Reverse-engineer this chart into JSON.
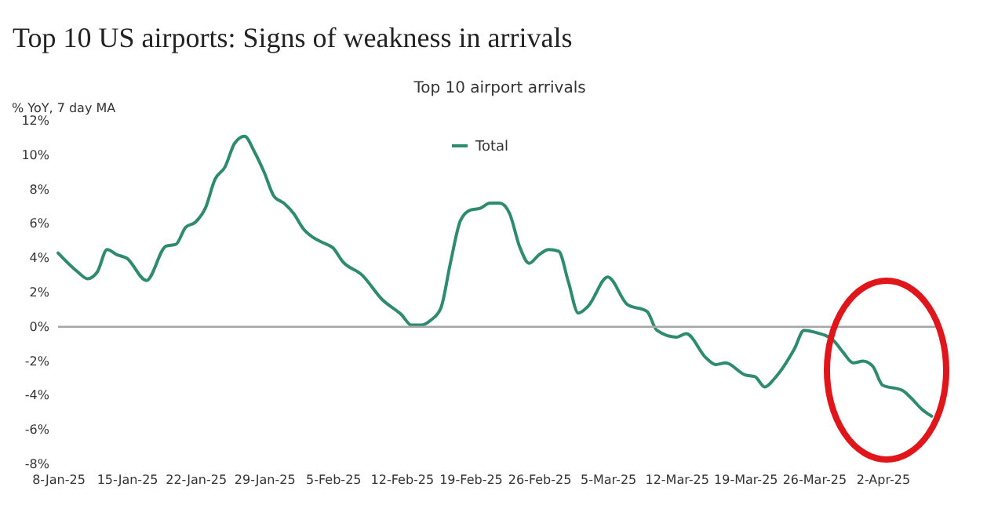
{
  "chart_data": {
    "type": "line",
    "title": "Top 10 US airports: Signs of weakness in arrivals",
    "subtitle": "Top 10 airport arrivals",
    "ylabel": "% YoY, 7 day MA",
    "x": [
      "--01-08",
      "--01-10",
      "--01-11",
      "--01-12",
      "--01-13",
      "--01-14",
      "--01-15",
      "--01-17",
      "--01-19",
      "--01-20",
      "--01-21",
      "--01-22",
      "--01-23",
      "--01-24",
      "--01-25",
      "--01-26",
      "--01-27",
      "--01-28",
      "--01-29",
      "--01-30",
      "--01-31",
      "--02-01",
      "--02-02",
      "--02-03",
      "--02-04",
      "--02-05",
      "--02-06",
      "--02-08",
      "--02-10",
      "--02-12",
      "--02-13",
      "--02-14",
      "--02-15",
      "--02-16",
      "--02-17",
      "--02-18",
      "--02-19",
      "--02-20",
      "--02-21",
      "--02-22",
      "--02-23",
      "--02-24",
      "--02-25",
      "--02-26",
      "--02-27",
      "--02-28",
      "--03-01",
      "--03-02",
      "--03-03",
      "--03-05",
      "--03-07",
      "--03-09",
      "--03-10",
      "--03-12",
      "--03-13",
      "--03-15",
      "--03-16",
      "--03-17",
      "--03-19",
      "--03-20",
      "--03-21",
      "--03-22",
      "--03-24",
      "--03-25",
      "--03-26",
      "--03-28",
      "--03-29",
      "--03-30",
      "--03-31",
      "--04-01",
      "--04-02",
      "--04-04",
      "--04-05",
      "--04-06",
      "--04-07"
    ],
    "series": [
      {
        "name": "Total",
        "color": "#2e8b6e",
        "values": [
          4.3,
          3.2,
          2.8,
          3.2,
          4.5,
          4.2,
          4.0,
          2.7,
          4.7,
          4.8,
          5.8,
          6.1,
          6.9,
          8.6,
          9.3,
          10.7,
          11.1,
          10.2,
          9.0,
          7.6,
          7.2,
          6.6,
          5.7,
          5.2,
          4.9,
          4.6,
          3.8,
          3.0,
          1.6,
          0.7,
          0.1,
          0.1,
          0.4,
          1.1,
          3.8,
          6.2,
          6.8,
          6.9,
          7.2,
          7.2,
          6.6,
          4.7,
          3.7,
          4.2,
          4.5,
          4.4,
          2.6,
          0.8,
          1.2,
          2.9,
          1.3,
          0.9,
          -0.2,
          -0.6,
          -0.4,
          -1.8,
          -2.2,
          -2.1,
          -2.8,
          -2.9,
          -3.5,
          -3.0,
          -1.3,
          -0.2,
          -0.3,
          -0.8,
          -1.5,
          -2.1,
          -2.0,
          -2.3,
          -3.4,
          -3.7,
          -4.2,
          -4.8,
          -5.2
        ]
      }
    ],
    "xlim": [
      "--01-08",
      "--04-08"
    ],
    "xticks": [
      {
        "value": "--01-08",
        "label": "8-Jan-25"
      },
      {
        "value": "--01-15",
        "label": "15-Jan-25"
      },
      {
        "value": "--01-22",
        "label": "22-Jan-25"
      },
      {
        "value": "--01-29",
        "label": "29-Jan-25"
      },
      {
        "value": "--02-05",
        "label": "5-Feb-25"
      },
      {
        "value": "--02-12",
        "label": "12-Feb-25"
      },
      {
        "value": "--02-19",
        "label": "19-Feb-25"
      },
      {
        "value": "--02-26",
        "label": "26-Feb-25"
      },
      {
        "value": "--03-05",
        "label": "5-Mar-25"
      },
      {
        "value": "--03-12",
        "label": "12-Mar-25"
      },
      {
        "value": "--03-19",
        "label": "19-Mar-25"
      },
      {
        "value": "--03-26",
        "label": "26-Mar-25"
      },
      {
        "value": "--04-02",
        "label": "2-Apr-25"
      }
    ],
    "ylim": [
      -8,
      12
    ],
    "yticks": [
      {
        "value": -8,
        "label": "-8%"
      },
      {
        "value": -6,
        "label": "-6%"
      },
      {
        "value": -4,
        "label": "-4%"
      },
      {
        "value": -2,
        "label": "-2%"
      },
      {
        "value": 0,
        "label": "0%"
      },
      {
        "value": 2,
        "label": "2%"
      },
      {
        "value": 4,
        "label": "4%"
      },
      {
        "value": 6,
        "label": "6%"
      },
      {
        "value": 8,
        "label": "8%"
      },
      {
        "value": 10,
        "label": "10%"
      },
      {
        "value": 12,
        "label": "12%"
      }
    ],
    "ref_lines": [
      {
        "axis": "y",
        "value": 0,
        "color": "#a6a6a6"
      }
    ],
    "legend": "top",
    "grid": false,
    "line_style": "solid",
    "marker": "none"
  }
}
